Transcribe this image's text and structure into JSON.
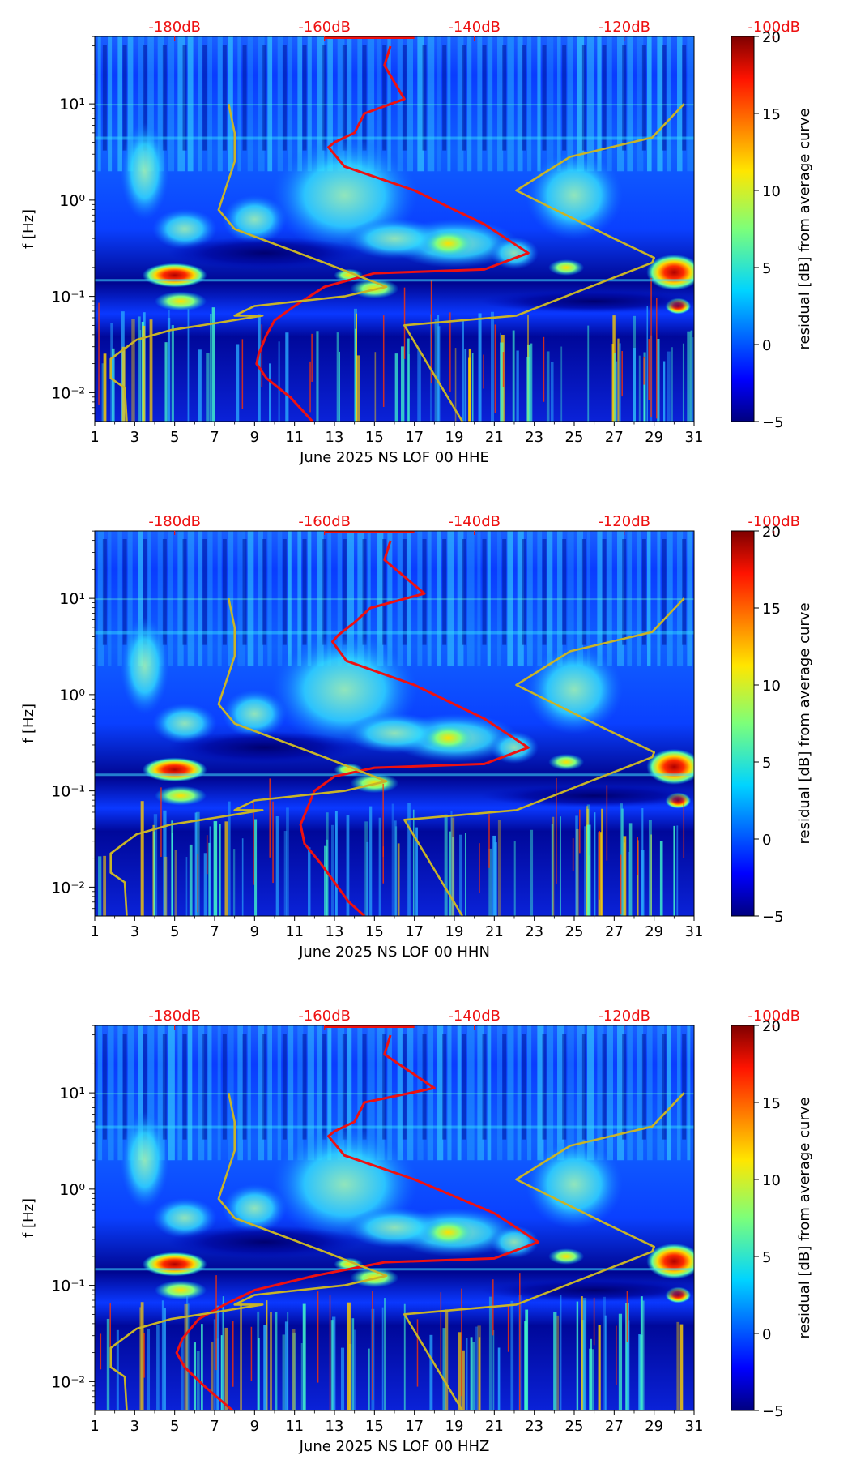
{
  "figure": {
    "name": "seismic-spectrogram-residual-panels"
  },
  "chart_data": [
    {
      "type": "heatmap",
      "title": "",
      "xlabel": "June 2025 NS LOF 00 HHE",
      "ylabel": "f [Hz]",
      "xlim": [
        1,
        31
      ],
      "ylim_log10": [
        -2.3,
        1.7
      ],
      "x_ticks": [
        "1",
        "3",
        "5",
        "7",
        "9",
        "11",
        "13",
        "15",
        "17",
        "19",
        "21",
        "23",
        "25",
        "27",
        "29",
        "31"
      ],
      "y_ticks": [
        "10⁻²",
        "10⁻¹",
        "10⁰",
        "10¹"
      ],
      "top_axis_ticks": [
        "-180dB",
        "-160dB",
        "-140dB",
        "-120dB",
        "-100dB"
      ],
      "colorbar": {
        "label": "residual [dB] from average curve",
        "range": [
          -5,
          20
        ],
        "ticks": [
          "−5",
          "0",
          "5",
          "10",
          "15",
          "20"
        ]
      },
      "series": [
        {
          "name": "average PSD (red)",
          "color": "#ee1111",
          "day": [
            15.8,
            15.5,
            16.5,
            14.5,
            14.0,
            13.0,
            12.7,
            13.5,
            17.0,
            20.5,
            22.7,
            20.5,
            15.0,
            12.5,
            11.0,
            10.0,
            9.6,
            9.2,
            9.1,
            9.6,
            10.8,
            11.9
          ],
          "log_f": [
            1.6,
            1.4,
            1.05,
            0.9,
            0.7,
            0.6,
            0.55,
            0.35,
            0.1,
            -0.25,
            -0.55,
            -0.72,
            -0.76,
            -0.9,
            -1.1,
            -1.25,
            -1.4,
            -1.6,
            -1.7,
            -1.85,
            -2.05,
            -2.3
          ]
        },
        {
          "name": "noise model (yellow)",
          "color": "#c8b428",
          "day": [
            7.7,
            8.0,
            8.0,
            7.2,
            8.0,
            12.5,
            15.6,
            13.5,
            9.0,
            8.0,
            9.4,
            7.0,
            4.8,
            3.1,
            1.8,
            1.8,
            2.5,
            2.6
          ],
          "log_f": [
            1.0,
            0.7,
            0.4,
            -0.1,
            -0.3,
            -0.65,
            -0.9,
            -1.0,
            -1.1,
            -1.2,
            -1.2,
            -1.28,
            -1.35,
            -1.45,
            -1.65,
            -1.85,
            -1.95,
            -2.3
          ]
        },
        {
          "name": "noise model right (yellow)",
          "color": "#c8b428",
          "day": [
            30.5,
            28.9,
            24.8,
            22.1,
            26.5,
            29.0,
            28.9,
            22.1,
            16.5,
            19.4
          ],
          "log_f": [
            1.0,
            0.65,
            0.45,
            0.1,
            -0.35,
            -0.6,
            -0.65,
            -1.2,
            -1.3,
            -2.3
          ]
        }
      ]
    },
    {
      "type": "heatmap",
      "title": "",
      "xlabel": "June 2025 NS LOF 00 HHN",
      "ylabel": "f [Hz]",
      "xlim": [
        1,
        31
      ],
      "ylim_log10": [
        -2.3,
        1.7
      ],
      "x_ticks": [
        "1",
        "3",
        "5",
        "7",
        "9",
        "11",
        "13",
        "15",
        "17",
        "19",
        "21",
        "23",
        "25",
        "27",
        "29",
        "31"
      ],
      "y_ticks": [
        "10⁻²",
        "10⁻¹",
        "10⁰",
        "10¹"
      ],
      "top_axis_ticks": [
        "-180dB",
        "-160dB",
        "-140dB",
        "-120dB",
        "-100dB"
      ],
      "colorbar": {
        "label": "residual [dB] from average curve",
        "range": [
          -5,
          20
        ],
        "ticks": [
          "−5",
          "0",
          "5",
          "10",
          "15",
          "20"
        ]
      },
      "series": [
        {
          "name": "average PSD (red)",
          "color": "#ee1111",
          "day": [
            15.8,
            15.5,
            17.5,
            14.8,
            14.0,
            13.2,
            12.9,
            13.6,
            17.0,
            20.5,
            22.7,
            20.5,
            15.0,
            13.0,
            12.0,
            11.3,
            11.5,
            12.3,
            13.0,
            13.7,
            14.5
          ],
          "log_f": [
            1.6,
            1.4,
            1.05,
            0.9,
            0.75,
            0.62,
            0.55,
            0.35,
            0.1,
            -0.25,
            -0.55,
            -0.72,
            -0.76,
            -0.85,
            -1.0,
            -1.35,
            -1.55,
            -1.75,
            -1.95,
            -2.15,
            -2.3
          ]
        },
        {
          "name": "noise model (yellow)",
          "color": "#c8b428",
          "day": [
            7.7,
            8.0,
            8.0,
            7.2,
            8.0,
            12.5,
            15.6,
            13.5,
            9.0,
            8.0,
            9.4,
            7.0,
            4.8,
            3.1,
            1.8,
            1.8,
            2.5,
            2.6
          ],
          "log_f": [
            1.0,
            0.7,
            0.4,
            -0.1,
            -0.3,
            -0.65,
            -0.9,
            -1.0,
            -1.1,
            -1.2,
            -1.2,
            -1.28,
            -1.35,
            -1.45,
            -1.65,
            -1.85,
            -1.95,
            -2.3
          ]
        },
        {
          "name": "noise model right (yellow)",
          "color": "#c8b428",
          "day": [
            30.5,
            28.9,
            24.8,
            22.1,
            26.5,
            29.0,
            28.9,
            22.1,
            16.5,
            19.4
          ],
          "log_f": [
            1.0,
            0.65,
            0.45,
            0.1,
            -0.35,
            -0.6,
            -0.65,
            -1.2,
            -1.3,
            -2.3
          ]
        }
      ]
    },
    {
      "type": "heatmap",
      "title": "",
      "xlabel": "June 2025 NS LOF 00 HHZ",
      "ylabel": "f [Hz]",
      "xlim": [
        1,
        31
      ],
      "ylim_log10": [
        -2.3,
        1.7
      ],
      "x_ticks": [
        "1",
        "3",
        "5",
        "7",
        "9",
        "11",
        "13",
        "15",
        "17",
        "19",
        "21",
        "23",
        "25",
        "27",
        "29",
        "31"
      ],
      "y_ticks": [
        "10⁻²",
        "10⁻¹",
        "10⁰",
        "10¹"
      ],
      "top_axis_ticks": [
        "-180dB",
        "-160dB",
        "-140dB",
        "-120dB",
        "-100dB"
      ],
      "colorbar": {
        "label": "residual [dB] from average curve",
        "range": [
          -5,
          20
        ],
        "ticks": [
          "−5",
          "0",
          "5",
          "10",
          "15",
          "20"
        ]
      },
      "series": [
        {
          "name": "average PSD (red)",
          "color": "#ee1111",
          "day": [
            15.8,
            15.5,
            18.0,
            14.5,
            14.0,
            13.0,
            12.7,
            13.5,
            17.0,
            21.0,
            23.2,
            21.0,
            15.5,
            12.0,
            9.0,
            7.5,
            6.2,
            5.4,
            5.1,
            5.5,
            6.5,
            7.9
          ],
          "log_f": [
            1.6,
            1.4,
            1.05,
            0.9,
            0.7,
            0.6,
            0.55,
            0.35,
            0.1,
            -0.25,
            -0.55,
            -0.72,
            -0.76,
            -0.9,
            -1.05,
            -1.2,
            -1.35,
            -1.55,
            -1.7,
            -1.85,
            -2.05,
            -2.3
          ]
        },
        {
          "name": "noise model (yellow)",
          "color": "#c8b428",
          "day": [
            7.7,
            8.0,
            8.0,
            7.2,
            8.0,
            12.5,
            15.6,
            13.5,
            9.0,
            8.0,
            9.4,
            7.0,
            4.8,
            3.1,
            1.8,
            1.8,
            2.5,
            2.6
          ],
          "log_f": [
            1.0,
            0.7,
            0.4,
            -0.1,
            -0.3,
            -0.65,
            -0.9,
            -1.0,
            -1.1,
            -1.2,
            -1.2,
            -1.28,
            -1.35,
            -1.45,
            -1.65,
            -1.85,
            -1.95,
            -2.3
          ]
        },
        {
          "name": "noise model right (yellow)",
          "color": "#c8b428",
          "day": [
            30.5,
            28.9,
            24.8,
            22.1,
            26.5,
            29.0,
            28.9,
            22.1,
            16.5,
            19.4
          ],
          "log_f": [
            1.0,
            0.65,
            0.45,
            0.1,
            -0.35,
            -0.6,
            -0.65,
            -1.2,
            -1.3,
            -2.3
          ]
        }
      ]
    }
  ]
}
